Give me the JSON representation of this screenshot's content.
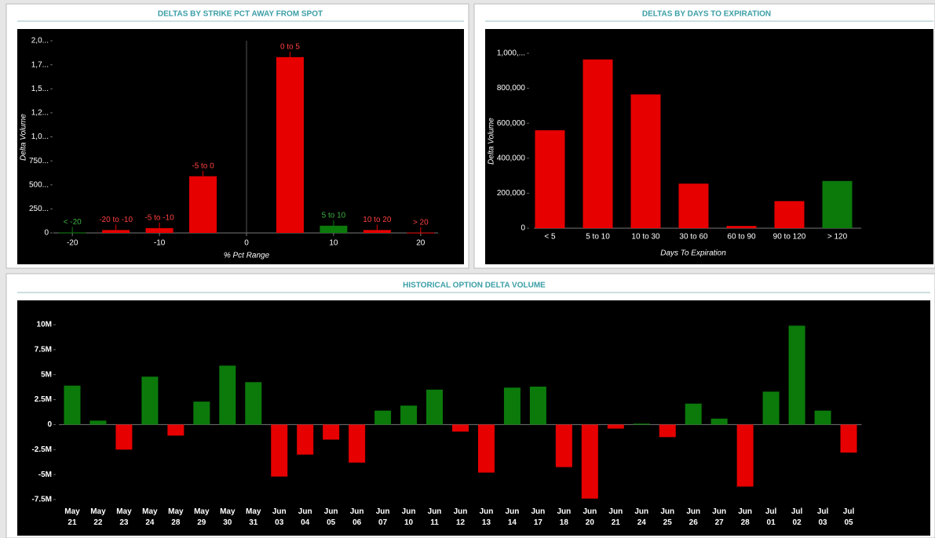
{
  "chart_data": [
    {
      "type": "bar",
      "title": "DELTAS BY STRIKE PCT AWAY FROM SPOT",
      "x_label": "% Pct Range",
      "y_label": "Delta Volume",
      "x": [
        -20,
        -15,
        -10,
        -5,
        5,
        10,
        15,
        20
      ],
      "point_labels": [
        "< -20",
        "-20 to -10",
        "-5 to -10",
        "-5 to 0",
        "0 to 5",
        "5 to 10",
        "10 to 20",
        "> 20"
      ],
      "values": [
        5000,
        30000,
        50000,
        590000,
        1830000,
        75000,
        30000,
        3000
      ],
      "colors": [
        "#0b7a0b",
        "#e60000",
        "#e60000",
        "#e60000",
        "#e60000",
        "#0b7a0b",
        "#e60000",
        "#e60000"
      ],
      "xlim": [
        -22,
        22
      ],
      "xticks": [
        -20,
        -10,
        0,
        10,
        20
      ],
      "ylim": [
        0,
        2000000
      ],
      "yticks": [
        0,
        {
          "value": 250000,
          "label": "250..."
        },
        {
          "value": 500000,
          "label": "500..."
        },
        {
          "value": 750000,
          "label": "750..."
        },
        {
          "value": 1000000,
          "label": "1,0..."
        },
        {
          "value": 1250000,
          "label": "1,2..."
        },
        {
          "value": 1500000,
          "label": "1,5..."
        },
        {
          "value": 1750000,
          "label": "1,7..."
        },
        {
          "value": 2000000,
          "label": "2,0..."
        }
      ]
    },
    {
      "type": "bar",
      "title": "DELTAS BY DAYS TO EXPIRATION",
      "x_label": "Days To Expiration",
      "y_label": "Delta Volume",
      "categories": [
        "< 5",
        "5 to 10",
        "10 to 30",
        "30 to 60",
        "60 to 90",
        "90 to 120",
        "> 120"
      ],
      "values": [
        560000,
        965000,
        765000,
        255000,
        13000,
        155000,
        270000
      ],
      "colors": [
        "#e60000",
        "#e60000",
        "#e60000",
        "#e60000",
        "#e60000",
        "#e60000",
        "#0b7a0b"
      ],
      "ylim": [
        0,
        1000000
      ],
      "yticks": [
        0,
        {
          "value": 200000,
          "label": "200,000"
        },
        {
          "value": 400000,
          "label": "400,000"
        },
        {
          "value": 600000,
          "label": "600,000"
        },
        {
          "value": 800000,
          "label": "800,000"
        },
        {
          "value": 1000000,
          "label": "1,000,..."
        }
      ]
    },
    {
      "type": "bar",
      "title": "HISTORICAL OPTION DELTA VOLUME",
      "categories": [
        "May 21",
        "May 22",
        "May 23",
        "May 24",
        "May 28",
        "May 29",
        "May 30",
        "May 31",
        "Jun 03",
        "Jun 04",
        "Jun 05",
        "Jun 06",
        "Jun 07",
        "Jun 10",
        "Jun 11",
        "Jun 12",
        "Jun 13",
        "Jun 14",
        "Jun 17",
        "Jun 18",
        "Jun 20",
        "Jun 21",
        "Jun 24",
        "Jun 25",
        "Jun 26",
        "Jun 27",
        "Jun 28",
        "Jul 01",
        "Jul 02",
        "Jul 03",
        "Jul 05"
      ],
      "values": [
        3900000,
        400000,
        -2500000,
        4800000,
        -1100000,
        2300000,
        5900000,
        4250000,
        -5200000,
        -3000000,
        -1500000,
        -3800000,
        1400000,
        1900000,
        3500000,
        -700000,
        -4800000,
        3700000,
        3800000,
        -4250000,
        -7400000,
        -400000,
        100000,
        -1250000,
        2100000,
        600000,
        -6200000,
        3300000,
        9900000,
        1400000,
        -2800000
      ],
      "colors": [
        "#0b7a0b",
        "#0b7a0b",
        "#e60000",
        "#0b7a0b",
        "#e60000",
        "#0b7a0b",
        "#0b7a0b",
        "#0b7a0b",
        "#e60000",
        "#e60000",
        "#e60000",
        "#e60000",
        "#0b7a0b",
        "#0b7a0b",
        "#0b7a0b",
        "#e60000",
        "#e60000",
        "#0b7a0b",
        "#0b7a0b",
        "#e60000",
        "#e60000",
        "#e60000",
        "#0b7a0b",
        "#e60000",
        "#0b7a0b",
        "#0b7a0b",
        "#e60000",
        "#0b7a0b",
        "#0b7a0b",
        "#0b7a0b",
        "#e60000"
      ],
      "ylim": [
        -7500000,
        10000000
      ],
      "yticks": [
        {
          "value": -7500000,
          "label": "-7.5M"
        },
        {
          "value": -5000000,
          "label": "-5M"
        },
        {
          "value": -2500000,
          "label": "-2.5M"
        },
        0,
        {
          "value": 2500000,
          "label": "2.5M"
        },
        {
          "value": 5000000,
          "label": "5M"
        },
        {
          "value": 7500000,
          "label": "7.5M"
        },
        {
          "value": 10000000,
          "label": "10M"
        }
      ]
    }
  ]
}
